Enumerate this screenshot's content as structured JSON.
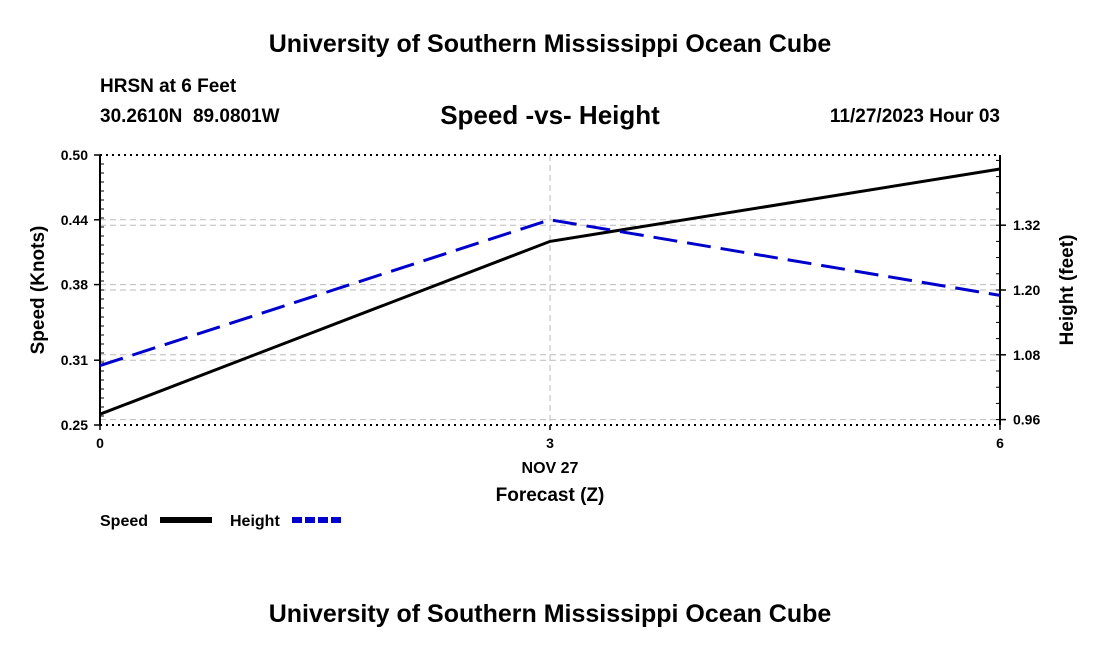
{
  "page": {
    "title_top": "University of Southern Mississippi Ocean Cube",
    "title_bottom": "University of Southern Mississippi Ocean Cube",
    "station_name": "HRSN at 6 Feet",
    "station_coords": "30.2610N  89.0801W",
    "chart_title": "Speed -vs- Height",
    "datetime": "11/27/2023 Hour 03"
  },
  "chart_data": {
    "type": "line",
    "title": "Speed -vs- Height",
    "x": [
      0,
      3,
      6
    ],
    "x_ticks": [
      "0",
      "3",
      "6"
    ],
    "x_date_label": "NOV 27",
    "xlabel": "Forecast (Z)",
    "xlim": [
      0,
      6
    ],
    "y_left": {
      "label": "Speed (Knots)",
      "lim": [
        0.25,
        0.5
      ],
      "ticks": [
        0.25,
        0.31,
        0.38,
        0.44,
        0.5
      ],
      "tick_labels": [
        "0.25",
        "0.31",
        "0.38",
        "0.44",
        "0.50"
      ]
    },
    "y_right": {
      "label": "Height (feet)",
      "lim": [
        0.95,
        1.45
      ],
      "ticks": [
        0.96,
        1.08,
        1.2,
        1.32
      ],
      "tick_labels": [
        "0.96",
        "1.08",
        "1.20",
        "1.32"
      ]
    },
    "series": [
      {
        "name": "Speed",
        "axis": "left",
        "color": "#000000",
        "dash": "solid",
        "values": [
          0.26,
          0.42,
          0.487
        ]
      },
      {
        "name": "Height",
        "axis": "right",
        "color": "#0000cc",
        "dash": "dashed",
        "values": [
          1.06,
          1.33,
          1.19
        ]
      }
    ],
    "legend": [
      "Speed",
      "Height"
    ],
    "grid": true
  }
}
